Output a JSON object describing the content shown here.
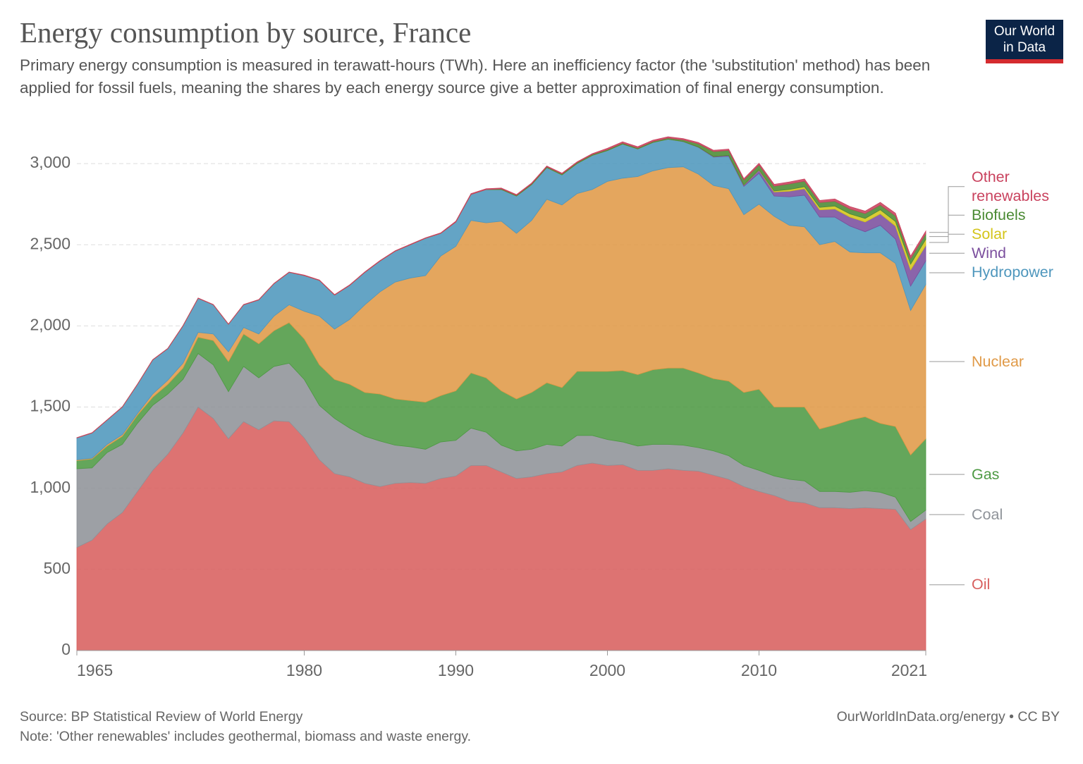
{
  "chart_data": {
    "type": "stacked-area",
    "title": "Energy consumption by source, France",
    "subtitle": "Primary energy consumption is measured in terawatt-hours (TWh). Here an inefficiency factor (the 'substitution' method) has been applied for fossil fuels, meaning the shares by each energy source give a better approximation of final energy consumption.",
    "source": "Source: BP Statistical Review of World Energy",
    "note": "Note: 'Other renewables' includes geothermal, biomass and waste energy.",
    "url": "OurWorldInData.org/energy • CC BY",
    "logo": [
      "Our World",
      "in Data"
    ],
    "x": [
      1965,
      1966,
      1967,
      1968,
      1969,
      1970,
      1971,
      1972,
      1973,
      1974,
      1975,
      1976,
      1977,
      1978,
      1979,
      1980,
      1981,
      1982,
      1983,
      1984,
      1985,
      1986,
      1987,
      1988,
      1989,
      1990,
      1991,
      1992,
      1993,
      1994,
      1995,
      1996,
      1997,
      1998,
      1999,
      2000,
      2001,
      2002,
      2003,
      2004,
      2005,
      2006,
      2007,
      2008,
      2009,
      2010,
      2011,
      2012,
      2013,
      2014,
      2015,
      2016,
      2017,
      2018,
      2019,
      2020,
      2021
    ],
    "xlim": [
      1965,
      2021
    ],
    "xticks": [
      1965,
      1980,
      1990,
      2000,
      2010,
      2021
    ],
    "ylim": [
      0,
      3200
    ],
    "yticks": [
      0,
      500,
      {
        "value": 1000,
        "label": "1,000"
      },
      {
        "value": 1500,
        "label": "1,500"
      },
      {
        "value": 2000,
        "label": "2,000"
      },
      {
        "value": 2500,
        "label": "2,500"
      },
      {
        "value": 3000,
        "label": "3,000"
      }
    ],
    "grid": true,
    "series": [
      {
        "name": "Oil",
        "color": "#d8605f",
        "values": [
          635,
          680,
          780,
          850,
          980,
          1110,
          1210,
          1340,
          1500,
          1430,
          1305,
          1410,
          1360,
          1415,
          1410,
          1310,
          1175,
          1090,
          1070,
          1030,
          1010,
          1030,
          1035,
          1030,
          1060,
          1075,
          1140,
          1140,
          1100,
          1060,
          1070,
          1090,
          1100,
          1140,
          1155,
          1140,
          1145,
          1110,
          1110,
          1120,
          1110,
          1105,
          1080,
          1055,
          1010,
          980,
          955,
          920,
          910,
          880,
          880,
          875,
          880,
          875,
          870,
          745,
          810
        ]
      },
      {
        "name": "Coal",
        "color": "#8f9399",
        "values": [
          485,
          445,
          440,
          420,
          420,
          400,
          370,
          330,
          330,
          330,
          290,
          340,
          320,
          335,
          360,
          360,
          335,
          340,
          300,
          290,
          280,
          235,
          220,
          210,
          225,
          220,
          230,
          205,
          165,
          170,
          170,
          180,
          160,
          185,
          170,
          160,
          140,
          150,
          160,
          150,
          155,
          145,
          150,
          145,
          130,
          130,
          120,
          135,
          135,
          100,
          100,
          100,
          105,
          100,
          75,
          50,
          55
        ]
      },
      {
        "name": "Gas",
        "color": "#4e9a44",
        "values": [
          50,
          55,
          40,
          50,
          50,
          50,
          60,
          70,
          100,
          150,
          185,
          200,
          210,
          220,
          250,
          250,
          250,
          240,
          270,
          270,
          290,
          285,
          285,
          290,
          285,
          305,
          340,
          335,
          335,
          320,
          350,
          380,
          360,
          395,
          395,
          420,
          440,
          440,
          460,
          470,
          475,
          460,
          445,
          460,
          450,
          500,
          425,
          445,
          455,
          385,
          410,
          445,
          455,
          425,
          435,
          410,
          440
        ]
      },
      {
        "name": "Nuclear",
        "color": "#e09a48",
        "values": [
          5,
          5,
          10,
          10,
          10,
          20,
          25,
          30,
          30,
          40,
          60,
          40,
          60,
          90,
          110,
          170,
          300,
          310,
          400,
          540,
          630,
          720,
          755,
          780,
          860,
          890,
          940,
          955,
          1045,
          1020,
          1060,
          1130,
          1125,
          1095,
          1120,
          1170,
          1185,
          1220,
          1225,
          1235,
          1240,
          1225,
          1190,
          1185,
          1095,
          1140,
          1175,
          1120,
          1110,
          1135,
          1130,
          1035,
          1010,
          1050,
          1005,
          890,
          950
        ]
      },
      {
        "name": "Hydropower",
        "color": "#4f97bd",
        "values": [
          135,
          155,
          150,
          170,
          180,
          210,
          195,
          230,
          210,
          180,
          170,
          140,
          210,
          200,
          200,
          220,
          220,
          210,
          210,
          200,
          190,
          190,
          205,
          230,
          140,
          150,
          160,
          205,
          195,
          230,
          220,
          195,
          185,
          185,
          210,
          190,
          210,
          170,
          175,
          175,
          155,
          165,
          175,
          200,
          175,
          190,
          125,
          175,
          195,
          170,
          150,
          160,
          130,
          170,
          150,
          150,
          145
        ]
      },
      {
        "name": "Wind",
        "color": "#7b4f9e",
        "values": [
          0,
          0,
          0,
          0,
          0,
          0,
          0,
          0,
          0,
          0,
          0,
          0,
          0,
          0,
          0,
          0,
          0,
          0,
          0,
          0,
          0,
          0,
          0,
          0,
          0,
          0,
          0,
          0,
          0,
          0,
          0,
          0,
          0,
          0,
          0,
          0,
          0,
          0,
          0,
          0,
          1,
          2,
          4,
          6,
          8,
          20,
          25,
          35,
          40,
          45,
          50,
          55,
          60,
          70,
          80,
          100,
          95
        ]
      },
      {
        "name": "Solar",
        "color": "#d4c51a",
        "values": [
          0,
          0,
          0,
          0,
          0,
          0,
          0,
          0,
          0,
          0,
          0,
          0,
          0,
          0,
          0,
          0,
          0,
          0,
          0,
          0,
          0,
          0,
          0,
          0,
          0,
          0,
          0,
          0,
          0,
          0,
          0,
          0,
          0,
          0,
          0,
          0,
          0,
          0,
          0,
          0,
          0,
          0,
          0,
          0,
          1,
          2,
          6,
          10,
          12,
          15,
          18,
          20,
          22,
          25,
          28,
          35,
          38
        ]
      },
      {
        "name": "Biofuels",
        "color": "#4a8a33",
        "values": [
          0,
          0,
          0,
          0,
          0,
          0,
          0,
          0,
          0,
          0,
          0,
          0,
          0,
          0,
          0,
          0,
          0,
          0,
          0,
          0,
          0,
          0,
          0,
          0,
          0,
          0,
          0,
          0,
          4,
          4,
          5,
          5,
          6,
          6,
          6,
          6,
          6,
          6,
          6,
          7,
          10,
          20,
          30,
          30,
          30,
          30,
          30,
          35,
          35,
          30,
          30,
          30,
          30,
          30,
          35,
          35,
          35
        ]
      },
      {
        "name": "Other renewables",
        "color": "#c9425e",
        "values": [
          2,
          2,
          2,
          2,
          2,
          2,
          2,
          2,
          2,
          2,
          2,
          2,
          2,
          2,
          2,
          3,
          3,
          3,
          3,
          3,
          3,
          3,
          3,
          3,
          3,
          5,
          5,
          5,
          5,
          5,
          5,
          5,
          5,
          5,
          5,
          8,
          8,
          8,
          8,
          8,
          8,
          8,
          8,
          8,
          8,
          10,
          11,
          12,
          13,
          13,
          14,
          15,
          15,
          16,
          16,
          15,
          16
        ]
      }
    ]
  }
}
